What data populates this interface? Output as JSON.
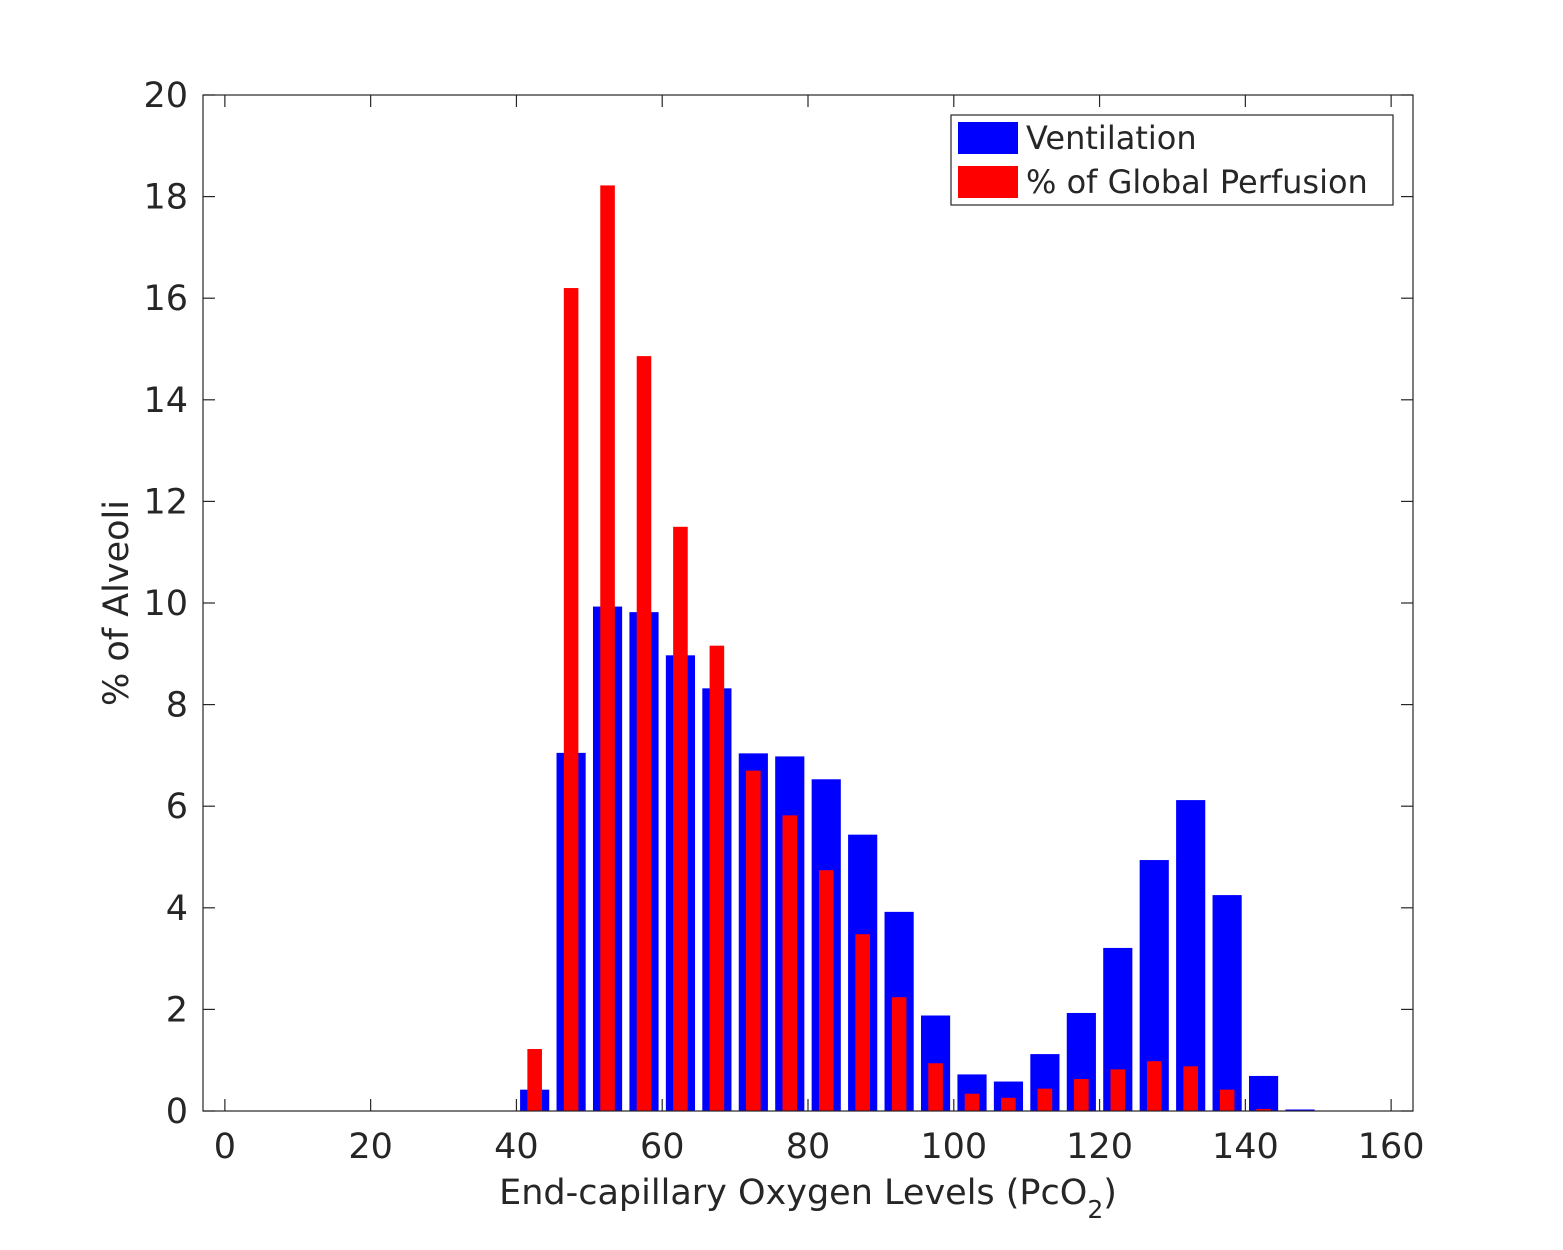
{
  "chart_data": {
    "type": "bar",
    "xlabel": "End-capillary Oxygen Levels (PcO",
    "xlabel_subscript": "2",
    "xlabel_suffix": ")",
    "ylabel": "% of Alveoli",
    "xlim": [
      -3,
      163
    ],
    "ylim": [
      0,
      20
    ],
    "xticks": [
      0,
      20,
      40,
      60,
      80,
      100,
      120,
      140,
      160
    ],
    "yticks": [
      0,
      2,
      4,
      6,
      8,
      10,
      12,
      14,
      16,
      18,
      20
    ],
    "xtick_labels": [
      "0",
      "20",
      "40",
      "60",
      "80",
      "100",
      "120",
      "140",
      "160"
    ],
    "ytick_labels": [
      "0",
      "2",
      "4",
      "6",
      "8",
      "10",
      "12",
      "14",
      "16",
      "18",
      "20"
    ],
    "grid": false,
    "legend_position": "top-right",
    "x": [
      2.5,
      7.5,
      12.5,
      17.5,
      22.5,
      27.5,
      32.5,
      37.5,
      42.5,
      47.5,
      52.5,
      57.5,
      62.5,
      67.5,
      72.5,
      77.5,
      82.5,
      87.5,
      92.5,
      97.5,
      102.5,
      107.5,
      112.5,
      117.5,
      122.5,
      127.5,
      132.5,
      137.5,
      142.5,
      147.5,
      152.5,
      157.5
    ],
    "series": [
      {
        "name": "Ventilation",
        "color": "#0000ff",
        "values": [
          0,
          0,
          0,
          0,
          0,
          0,
          0,
          0,
          0.42,
          7.05,
          9.93,
          9.82,
          8.97,
          8.32,
          7.04,
          6.98,
          6.53,
          5.44,
          3.92,
          1.88,
          0.72,
          0.58,
          1.12,
          1.93,
          3.21,
          4.94,
          6.12,
          4.25,
          0.69,
          0.03,
          0,
          0
        ]
      },
      {
        "name": "% of Global Perfusion",
        "color": "#ff0000",
        "values": [
          0,
          0,
          0,
          0,
          0,
          0,
          0,
          0,
          1.22,
          16.2,
          18.22,
          14.86,
          11.5,
          9.16,
          6.7,
          5.82,
          4.74,
          3.48,
          2.24,
          0.94,
          0.34,
          0.26,
          0.44,
          0.63,
          0.82,
          0.98,
          0.88,
          0.42,
          0.04,
          0,
          0,
          0
        ]
      }
    ]
  }
}
